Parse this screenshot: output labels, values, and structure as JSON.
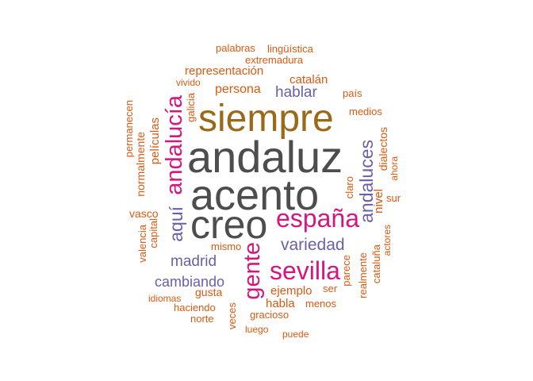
{
  "colors": {
    "gray": "#4d4d4d",
    "brown": "#9a6a18",
    "pink": "#d6157f",
    "purple": "#6a5fa8",
    "orange": "#d95a12"
  },
  "words": {
    "andaluz": "andaluz",
    "acento": "acento",
    "creo": "creo",
    "siempre": "siempre",
    "espana": "españa",
    "sevilla": "sevilla",
    "gente": "gente",
    "andalucia": "andalucía",
    "andaluces": "andaluces",
    "aqui": "aquí",
    "variedad": "variedad",
    "madrid": "madrid",
    "cambiando": "cambiando",
    "hablar": "hablar",
    "persona": "persona",
    "catalan": "catalán",
    "representacion": "representación",
    "extremadura": "extremadura",
    "linguistica": "lingüística",
    "palabras": "palabras",
    "vivido": "vivido",
    "galicia": "galicia",
    "pais": "país",
    "medios": "medios",
    "dialectos": "dialectos",
    "ahora": "ahora",
    "claro": "claro",
    "nivel": "nivel",
    "sur": "sur",
    "peliculas": "películas",
    "normalmente": "normalmente",
    "permanecen": "permanecen",
    "vasco": "vasco",
    "capital": "capital",
    "valencia": "valencia",
    "mismo": "mismo",
    "ejemplo": "ejemplo",
    "ser": "ser",
    "parece": "parece",
    "realmente": "realmente",
    "cataluna": "cataluña",
    "actores": "actores",
    "gusta": "gusta",
    "habla": "habla",
    "menos": "menos",
    "idiomas": "idiomas",
    "haciendo": "haciendo",
    "norte": "norte",
    "veces": "veces",
    "gracioso": "gracioso",
    "luego": "luego",
    "puede": "puede"
  }
}
